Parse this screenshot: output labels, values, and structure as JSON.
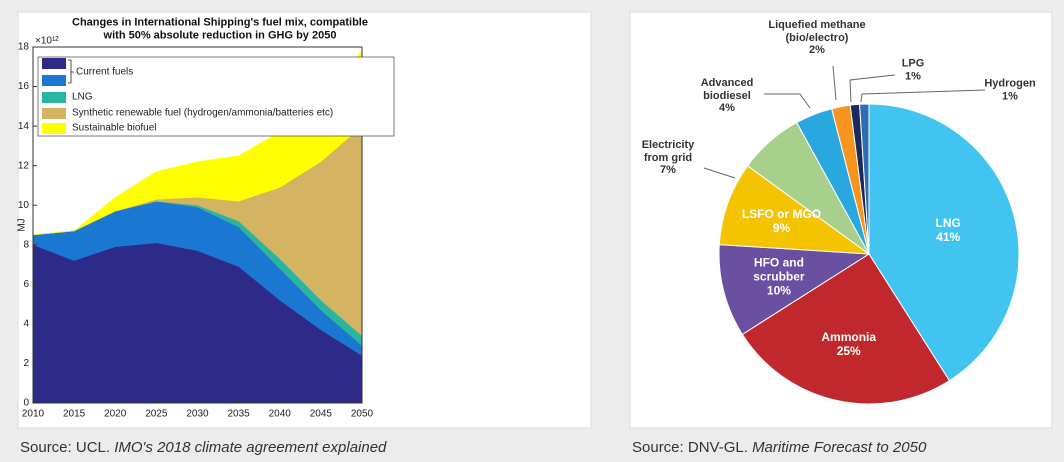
{
  "chart_data": [
    {
      "type": "area",
      "title": "Changes in International Shipping's fuel mix, compatible\nwith 50% absolute reduction in GHG by 2050",
      "y_label": "MJ",
      "y_multiplier": "×10¹²",
      "x": [
        2010,
        2015,
        2020,
        2025,
        2030,
        2035,
        2040,
        2045,
        2050
      ],
      "xlim": [
        2010,
        2050
      ],
      "xticks": [
        2010,
        2015,
        2020,
        2025,
        2030,
        2035,
        2040,
        2045,
        2050
      ],
      "ylim": [
        0,
        18
      ],
      "yticks": [
        0,
        2,
        4,
        6,
        8,
        10,
        12,
        14,
        16,
        18
      ],
      "stacked": true,
      "series": [
        {
          "name": "Current fuels",
          "color": "#2e2a87",
          "values": [
            8.0,
            7.2,
            7.9,
            8.1,
            7.7,
            6.9,
            5.2,
            3.7,
            2.4
          ]
        },
        {
          "color": "#1a78d2",
          "values": [
            0.5,
            1.5,
            1.8,
            2.1,
            2.2,
            2.0,
            1.6,
            1.0,
            0.5
          ]
        },
        {
          "name": "LNG",
          "color": "#2ab5a0",
          "values": [
            0,
            0,
            0,
            0,
            0.1,
            0.3,
            0.5,
            0.5,
            0.5
          ]
        },
        {
          "name": "Synthetic renewable fuel (hydrogen/ammonia/batteries etc)",
          "color": "#d4b463",
          "values": [
            0,
            0,
            0,
            0.1,
            0.4,
            1.0,
            3.6,
            7.0,
            10.6
          ]
        },
        {
          "name": "Sustainable biofuel",
          "color": "#ffff00",
          "values": [
            0,
            0,
            0.7,
            1.4,
            1.8,
            2.3,
            2.8,
            3.3,
            3.8
          ]
        }
      ],
      "source": "Source: UCL.",
      "source_title": "IMO's 2018 climate agreement explained"
    },
    {
      "type": "pie",
      "categories": [
        "LNG",
        "Ammonia",
        "HFO and\nscrubber",
        "LSFO or MGO",
        "Electricity\nfrom grid",
        "Advanced\nbiodiesel",
        "Liquefied methane\n(bio/electro)",
        "LPG",
        "Hydrogen"
      ],
      "values": [
        41,
        25,
        10,
        9,
        7,
        4,
        2,
        1,
        1
      ],
      "value_labels": [
        "41%",
        "25%",
        "10%",
        "9%",
        "7%",
        "4%",
        "2%",
        "1%",
        "1%"
      ],
      "colors": [
        "#41c4f0",
        "#c0282d",
        "#6b4fa0",
        "#f5c400",
        "#a6d08c",
        "#29a8e0",
        "#f7941d",
        "#1b2a5c",
        "#2d6db5"
      ],
      "source": "Source: DNV-GL.",
      "source_title": "Maritime Forecast to 2050"
    }
  ]
}
